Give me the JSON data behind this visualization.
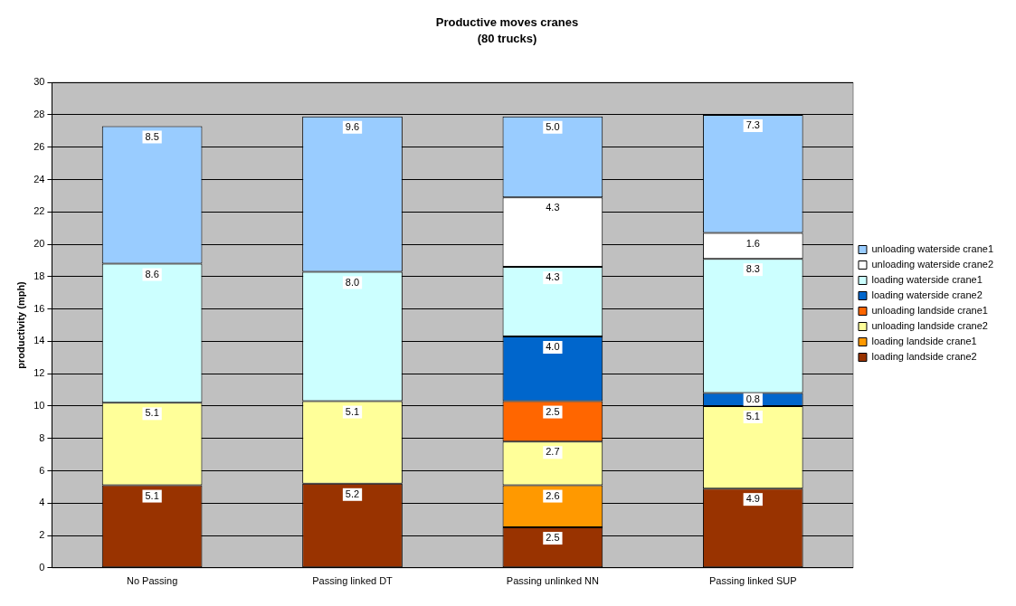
{
  "chart_data": {
    "type": "bar",
    "title": "Productive moves cranes",
    "subtitle": "(80 trucks)",
    "ylabel": "productivity (mph)",
    "categories": [
      "No Passing",
      "Passing linked DT",
      "Passing unlinked NN",
      "Passing linked SUP"
    ],
    "stacked": true,
    "ylim": [
      0,
      30
    ],
    "yticks": [
      0,
      2,
      4,
      6,
      8,
      10,
      12,
      14,
      16,
      18,
      20,
      22,
      24,
      26,
      28,
      30
    ],
    "grid": "y",
    "legend": "right",
    "series": [
      {
        "name": "loading landside crane2",
        "color": "#993300",
        "values": [
          5.1,
          5.2,
          2.5,
          4.9
        ],
        "value_labels": [
          "5.1",
          "5.2",
          "2.5",
          "4.9"
        ]
      },
      {
        "name": "loading landside crane1",
        "color": "#ff9900",
        "values": [
          null,
          null,
          2.6,
          null
        ],
        "value_labels": [
          null,
          null,
          "2.6",
          null
        ]
      },
      {
        "name": "unloading landside crane2",
        "color": "#ffff99",
        "values": [
          5.1,
          5.1,
          2.7,
          5.1
        ],
        "value_labels": [
          "5.1",
          "5.1",
          "2.7",
          "5.1"
        ]
      },
      {
        "name": "unloading landside crane1",
        "color": "#ff6600",
        "values": [
          null,
          null,
          2.5,
          null
        ],
        "value_labels": [
          null,
          null,
          "2.5",
          null
        ]
      },
      {
        "name": "loading waterside crane2",
        "color": "#0066cc",
        "values": [
          null,
          null,
          4.0,
          0.8
        ],
        "value_labels": [
          null,
          null,
          "4.0",
          "0.8"
        ]
      },
      {
        "name": "loading waterside crane1",
        "color": "#ccffff",
        "values": [
          8.6,
          8.0,
          4.3,
          8.3
        ],
        "value_labels": [
          "8.6",
          "8.0",
          "4.3",
          "8.3"
        ]
      },
      {
        "name": "unloading waterside crane2",
        "color": "#ffffff",
        "values": [
          null,
          null,
          4.3,
          1.6
        ],
        "value_labels": [
          null,
          null,
          "4.3",
          "1.6"
        ]
      },
      {
        "name": "unloading waterside crane1",
        "color": "#99ccff",
        "values": [
          8.5,
          9.6,
          5.0,
          7.3
        ],
        "value_labels": [
          "8.5",
          "9.6",
          "5.0",
          "7.3"
        ]
      }
    ]
  }
}
